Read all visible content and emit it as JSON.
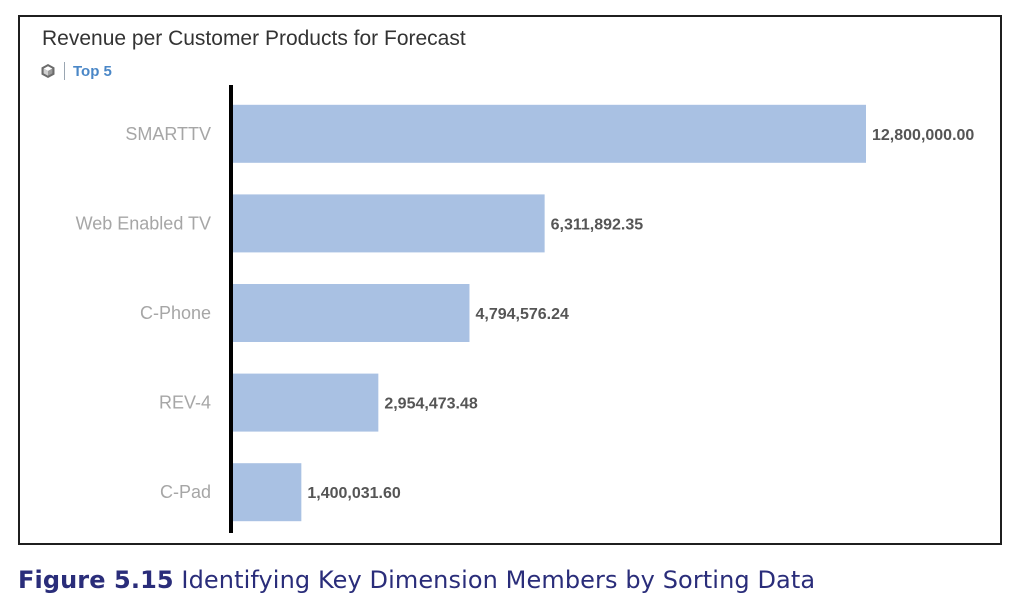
{
  "caption": {
    "number": "Figure 5.15",
    "text": "Identifying Key Dimension Members by Sorting Data"
  },
  "filter": {
    "icon": "cube-icon",
    "label": "Top 5"
  },
  "colors": {
    "bar": "#a9c1e3",
    "axis": "#000000",
    "category_text": "#a6a6a6",
    "value_text": "#555555",
    "filter_text": "#4a87c7",
    "caption_text": "#2a2d7a"
  },
  "chart_data": {
    "type": "bar",
    "orientation": "horizontal",
    "title": "Revenue per Customer Products for Forecast",
    "categories": [
      "SMARTTV",
      "Web Enabled TV",
      "C-Phone",
      "REV-4",
      "C-Pad"
    ],
    "values": [
      12800000.0,
      6311892.35,
      4794576.24,
      2954473.48,
      1400031.6
    ],
    "value_labels": [
      "12,800,000.00",
      "6,311,892.35",
      "4,794,576.24",
      "2,954,473.48",
      "1,400,031.60"
    ],
    "xlim": [
      0,
      12800000
    ],
    "grid": false,
    "legend": "none"
  }
}
